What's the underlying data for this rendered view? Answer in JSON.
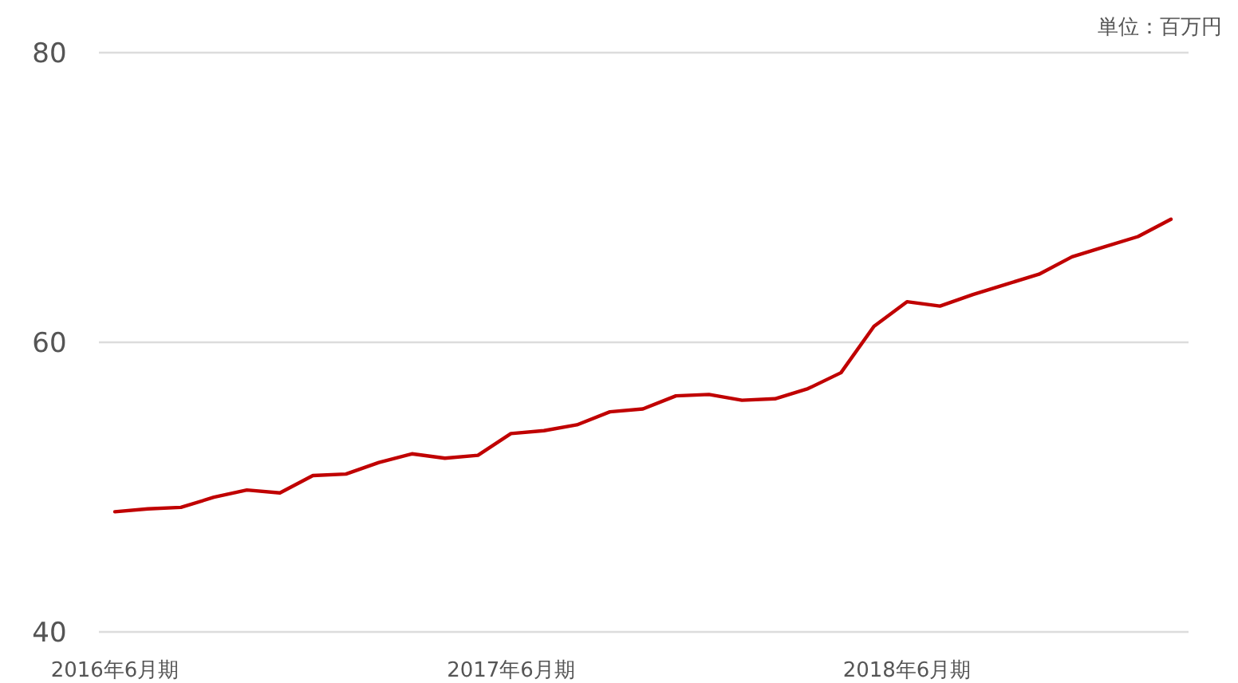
{
  "chart_data": {
    "type": "line",
    "categories": [
      "2016年6月期",
      null,
      null,
      null,
      null,
      null,
      null,
      null,
      null,
      null,
      null,
      null,
      "2017年6月期",
      null,
      null,
      null,
      null,
      null,
      null,
      null,
      null,
      null,
      null,
      null,
      "2018年6月期",
      null,
      null,
      null,
      null,
      null,
      null,
      null,
      null
    ],
    "series": [
      {
        "color": "#c00000",
        "values": [
          48.3,
          48.5,
          48.6,
          49.3,
          49.8,
          49.6,
          50.8,
          50.9,
          51.7,
          52.3,
          52.0,
          52.2,
          53.7,
          53.9,
          54.3,
          55.2,
          55.4,
          56.3,
          56.4,
          56.0,
          56.1,
          56.8,
          57.9,
          61.1,
          62.8,
          62.5,
          63.3,
          64.0,
          64.7,
          65.9,
          66.6,
          67.3,
          68.5
        ]
      }
    ],
    "ylim": [
      40,
      80
    ],
    "yticks": [
      40,
      60,
      80
    ],
    "grid": "y",
    "marker": "none",
    "line_style": "solid",
    "annotations": [
      "単位：百万円"
    ]
  }
}
